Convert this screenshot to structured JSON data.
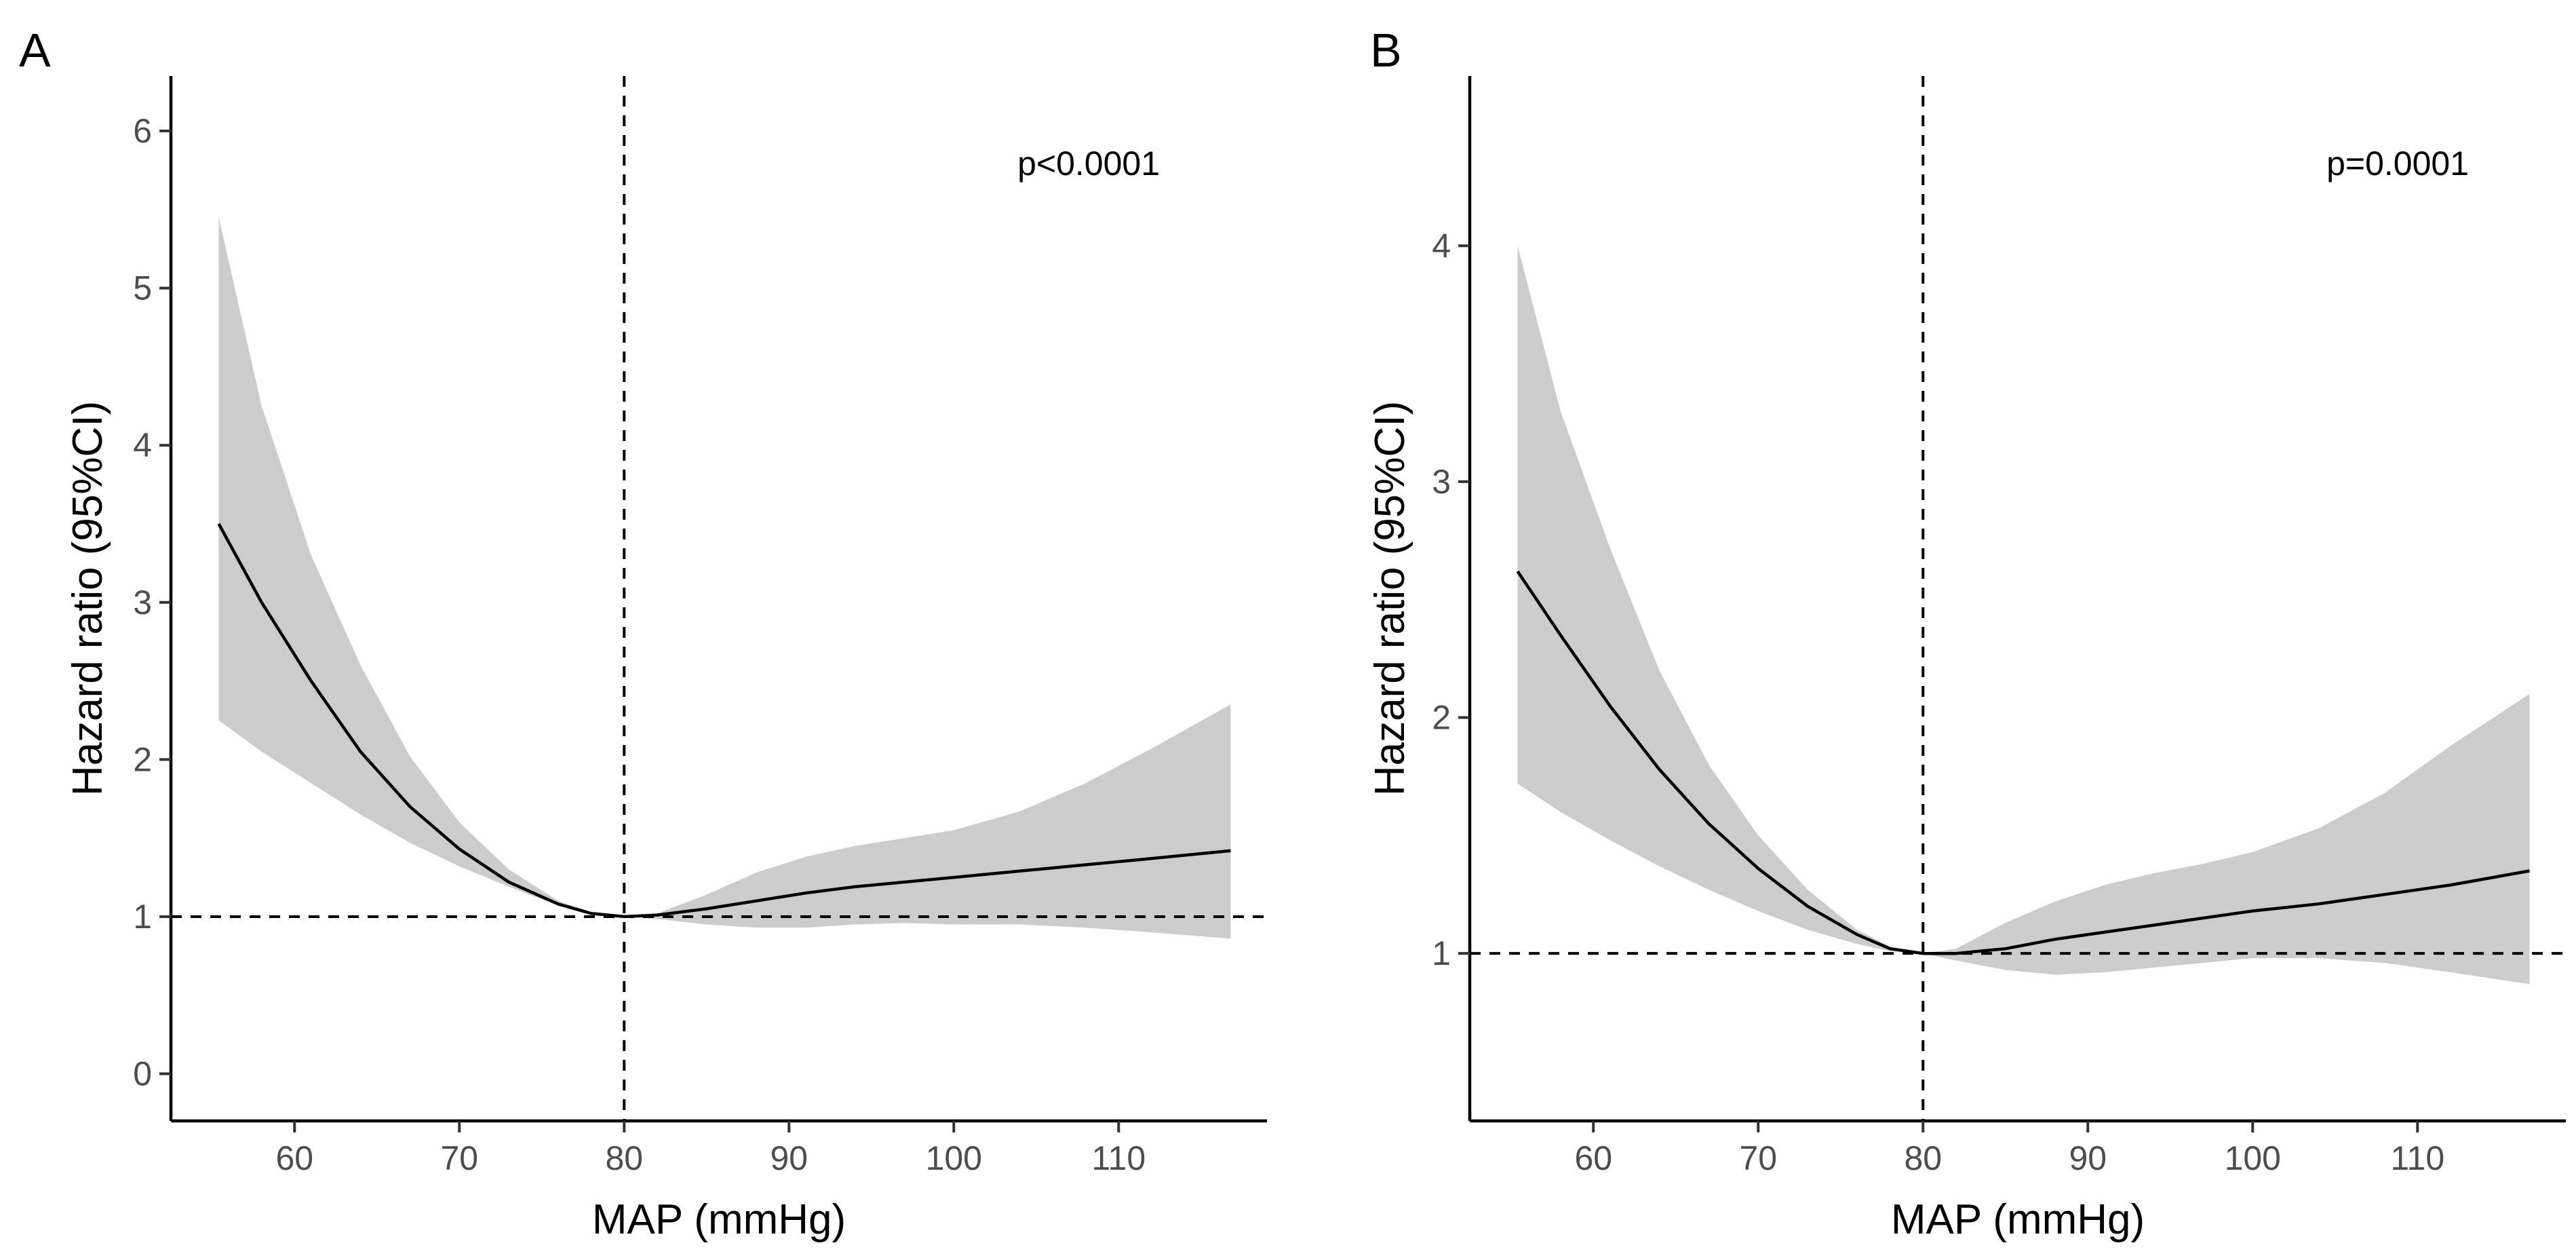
{
  "chart_data": [
    {
      "panel": "A",
      "type": "line",
      "xlabel": "MAP (mmHg)",
      "ylabel": "Hazard ratio (95%CI)",
      "annotation": "p<0.0001",
      "xlim": [
        52.5,
        119
      ],
      "ylim": [
        -0.3,
        6.35
      ],
      "xticks": [
        60,
        70,
        80,
        90,
        100,
        110
      ],
      "yticks": [
        0,
        1,
        2,
        3,
        4,
        5,
        6
      ],
      "reference_x": 80,
      "reference_y": 1,
      "series": [
        {
          "x": [
            55.4,
            58,
            61,
            64,
            67,
            70,
            73,
            76,
            78,
            80,
            82,
            85,
            88,
            91,
            94,
            97,
            100,
            104,
            108,
            112,
            116.8
          ],
          "y": [
            3.5,
            3.0,
            2.5,
            2.05,
            1.7,
            1.43,
            1.22,
            1.08,
            1.02,
            1.0,
            1.01,
            1.05,
            1.1,
            1.15,
            1.19,
            1.22,
            1.25,
            1.29,
            1.33,
            1.37,
            1.42
          ],
          "lower": [
            2.25,
            2.05,
            1.85,
            1.65,
            1.47,
            1.32,
            1.19,
            1.07,
            1.02,
            1.0,
            0.985,
            0.95,
            0.93,
            0.93,
            0.95,
            0.96,
            0.95,
            0.95,
            0.93,
            0.9,
            0.86
          ],
          "upper": [
            5.45,
            4.25,
            3.3,
            2.6,
            2.02,
            1.6,
            1.3,
            1.1,
            1.03,
            1.0,
            1.02,
            1.14,
            1.28,
            1.38,
            1.45,
            1.5,
            1.55,
            1.67,
            1.85,
            2.07,
            2.35
          ]
        }
      ]
    },
    {
      "panel": "B",
      "type": "line",
      "xlabel": "MAP (mmHg)",
      "ylabel": "Hazard ratio (95%CI)",
      "annotation": "p=0.0001",
      "xlim": [
        52.5,
        119
      ],
      "ylim": [
        0.29,
        4.72
      ],
      "xticks": [
        60,
        70,
        80,
        90,
        100,
        110
      ],
      "yticks": [
        1,
        2,
        3,
        4
      ],
      "reference_x": 80,
      "reference_y": 1,
      "series": [
        {
          "x": [
            55.4,
            58,
            61,
            64,
            67,
            70,
            73,
            76,
            78,
            80,
            82,
            85,
            88,
            91,
            94,
            97,
            100,
            104,
            108,
            112,
            116.8
          ],
          "y": [
            2.62,
            2.35,
            2.05,
            1.78,
            1.55,
            1.36,
            1.2,
            1.08,
            1.02,
            1.0,
            1.0,
            1.02,
            1.06,
            1.09,
            1.12,
            1.15,
            1.18,
            1.21,
            1.25,
            1.29,
            1.35
          ],
          "lower": [
            1.72,
            1.6,
            1.48,
            1.37,
            1.27,
            1.18,
            1.1,
            1.04,
            1.01,
            1.0,
            0.97,
            0.93,
            0.91,
            0.92,
            0.94,
            0.96,
            0.98,
            0.98,
            0.96,
            0.92,
            0.87
          ],
          "upper": [
            4.0,
            3.3,
            2.72,
            2.2,
            1.8,
            1.5,
            1.27,
            1.1,
            1.03,
            1.0,
            1.02,
            1.13,
            1.22,
            1.29,
            1.34,
            1.38,
            1.43,
            1.53,
            1.68,
            1.88,
            2.1
          ]
        }
      ]
    }
  ]
}
